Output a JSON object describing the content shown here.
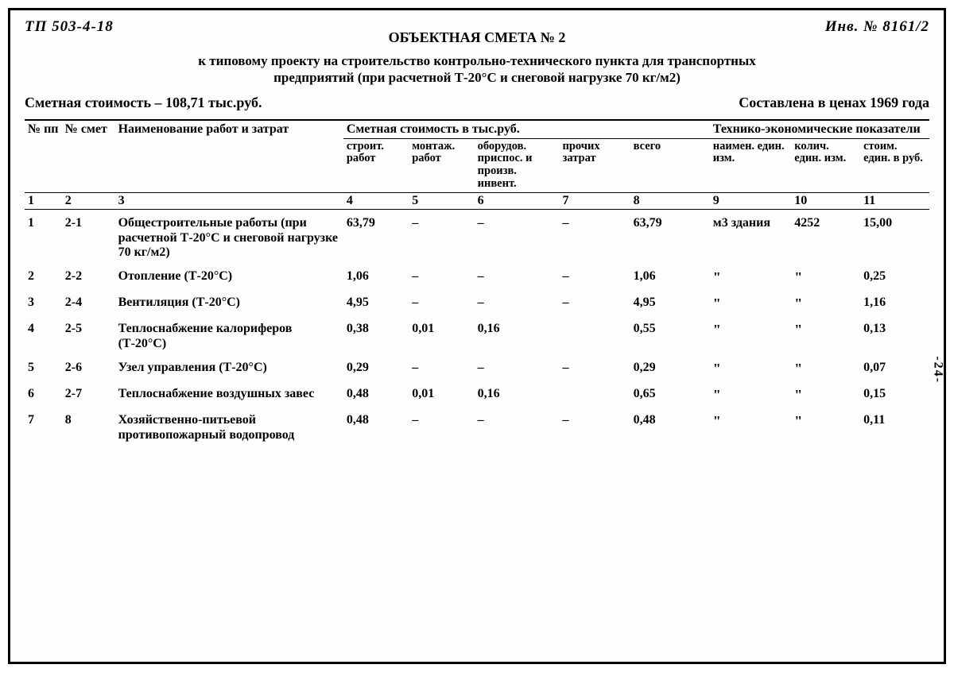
{
  "header": {
    "code_left": "ТП 503-4-18",
    "code_right": "Инв. № 8161/2",
    "title": "ОБЪЕКТНАЯ СМЕТА № 2",
    "subtitle": "к типовому проекту на строительство контрольно-технического пункта для транспортных предприятий (при расчетной Т-20°С и снеговой нагрузке 70 кг/м2)",
    "cost_label": "Сметная стоимость – 108,71 тыс.руб.",
    "price_year": "Составлена в ценах 1969 года",
    "side_page": "-24-"
  },
  "columns": {
    "group_cost": "Сметная стоимость в тыс.руб.",
    "group_tech": "Технико-экономические показатели",
    "h1": "№ пп",
    "h2": "№ смет",
    "h3": "Наименование работ и затрат",
    "h4": "строит. работ",
    "h5": "монтаж. работ",
    "h6": "оборудов. приспос. и произв. инвент.",
    "h7": "прочих затрат",
    "h8": "всего",
    "h9": "наимен. един. изм.",
    "h10": "колич. един. изм.",
    "h11": "стоим. един. в руб."
  },
  "colnums": {
    "c1": "1",
    "c2": "2",
    "c3": "3",
    "c4": "4",
    "c5": "5",
    "c6": "6",
    "c7": "7",
    "c8": "8",
    "c9": "9",
    "c10": "10",
    "c11": "11"
  },
  "rows": [
    {
      "n": "1",
      "smeta": "2-1",
      "name": "Общестроительные работы (при расчетной Т-20°С и снеговой нагрузке 70 кг/м2)",
      "c4": "63,79",
      "c5": "–",
      "c6": "–",
      "c7": "–",
      "c8": "63,79",
      "c9": "м3 здания",
      "c10": "4252",
      "c11": "15,00"
    },
    {
      "n": "2",
      "smeta": "2-2",
      "name": "Отопление (Т-20°С)",
      "c4": "1,06",
      "c5": "–",
      "c6": "–",
      "c7": "–",
      "c8": "1,06",
      "c9": "\"",
      "c10": "\"",
      "c11": "0,25"
    },
    {
      "n": "3",
      "smeta": "2-4",
      "name": "Вентиляция (Т-20°С)",
      "c4": "4,95",
      "c5": "–",
      "c6": "–",
      "c7": "–",
      "c8": "4,95",
      "c9": "\"",
      "c10": "\"",
      "c11": "1,16"
    },
    {
      "n": "4",
      "smeta": "2-5",
      "name": "Теплоснабжение калориферов (Т-20°С)",
      "c4": "0,38",
      "c5": "0,01",
      "c6": "0,16",
      "c7": "",
      "c8": "0,55",
      "c9": "\"",
      "c10": "\"",
      "c11": "0,13"
    },
    {
      "n": "5",
      "smeta": "2-6",
      "name": "Узел управления (Т-20°С)",
      "c4": "0,29",
      "c5": "–",
      "c6": "–",
      "c7": "–",
      "c8": "0,29",
      "c9": "\"",
      "c10": "\"",
      "c11": "0,07"
    },
    {
      "n": "6",
      "smeta": "2-7",
      "name": "Теплоснабжение воздушных завес",
      "c4": "0,48",
      "c5": "0,01",
      "c6": "0,16",
      "c7": "",
      "c8": "0,65",
      "c9": "\"",
      "c10": "\"",
      "c11": "0,15"
    },
    {
      "n": "7",
      "smeta": "8",
      "name": "Хозяйственно-питьевой противопожарный водопровод",
      "c4": "0,48",
      "c5": "–",
      "c6": "–",
      "c7": "–",
      "c8": "0,48",
      "c9": "\"",
      "c10": "\"",
      "c11": "0,11"
    }
  ],
  "style": {
    "font_family": "Times New Roman",
    "text_color": "#000000",
    "background": "#fdfdfb",
    "border_color": "#000000",
    "title_fontsize": 18,
    "body_fontsize": 16,
    "header_fontsize": 14.5
  }
}
